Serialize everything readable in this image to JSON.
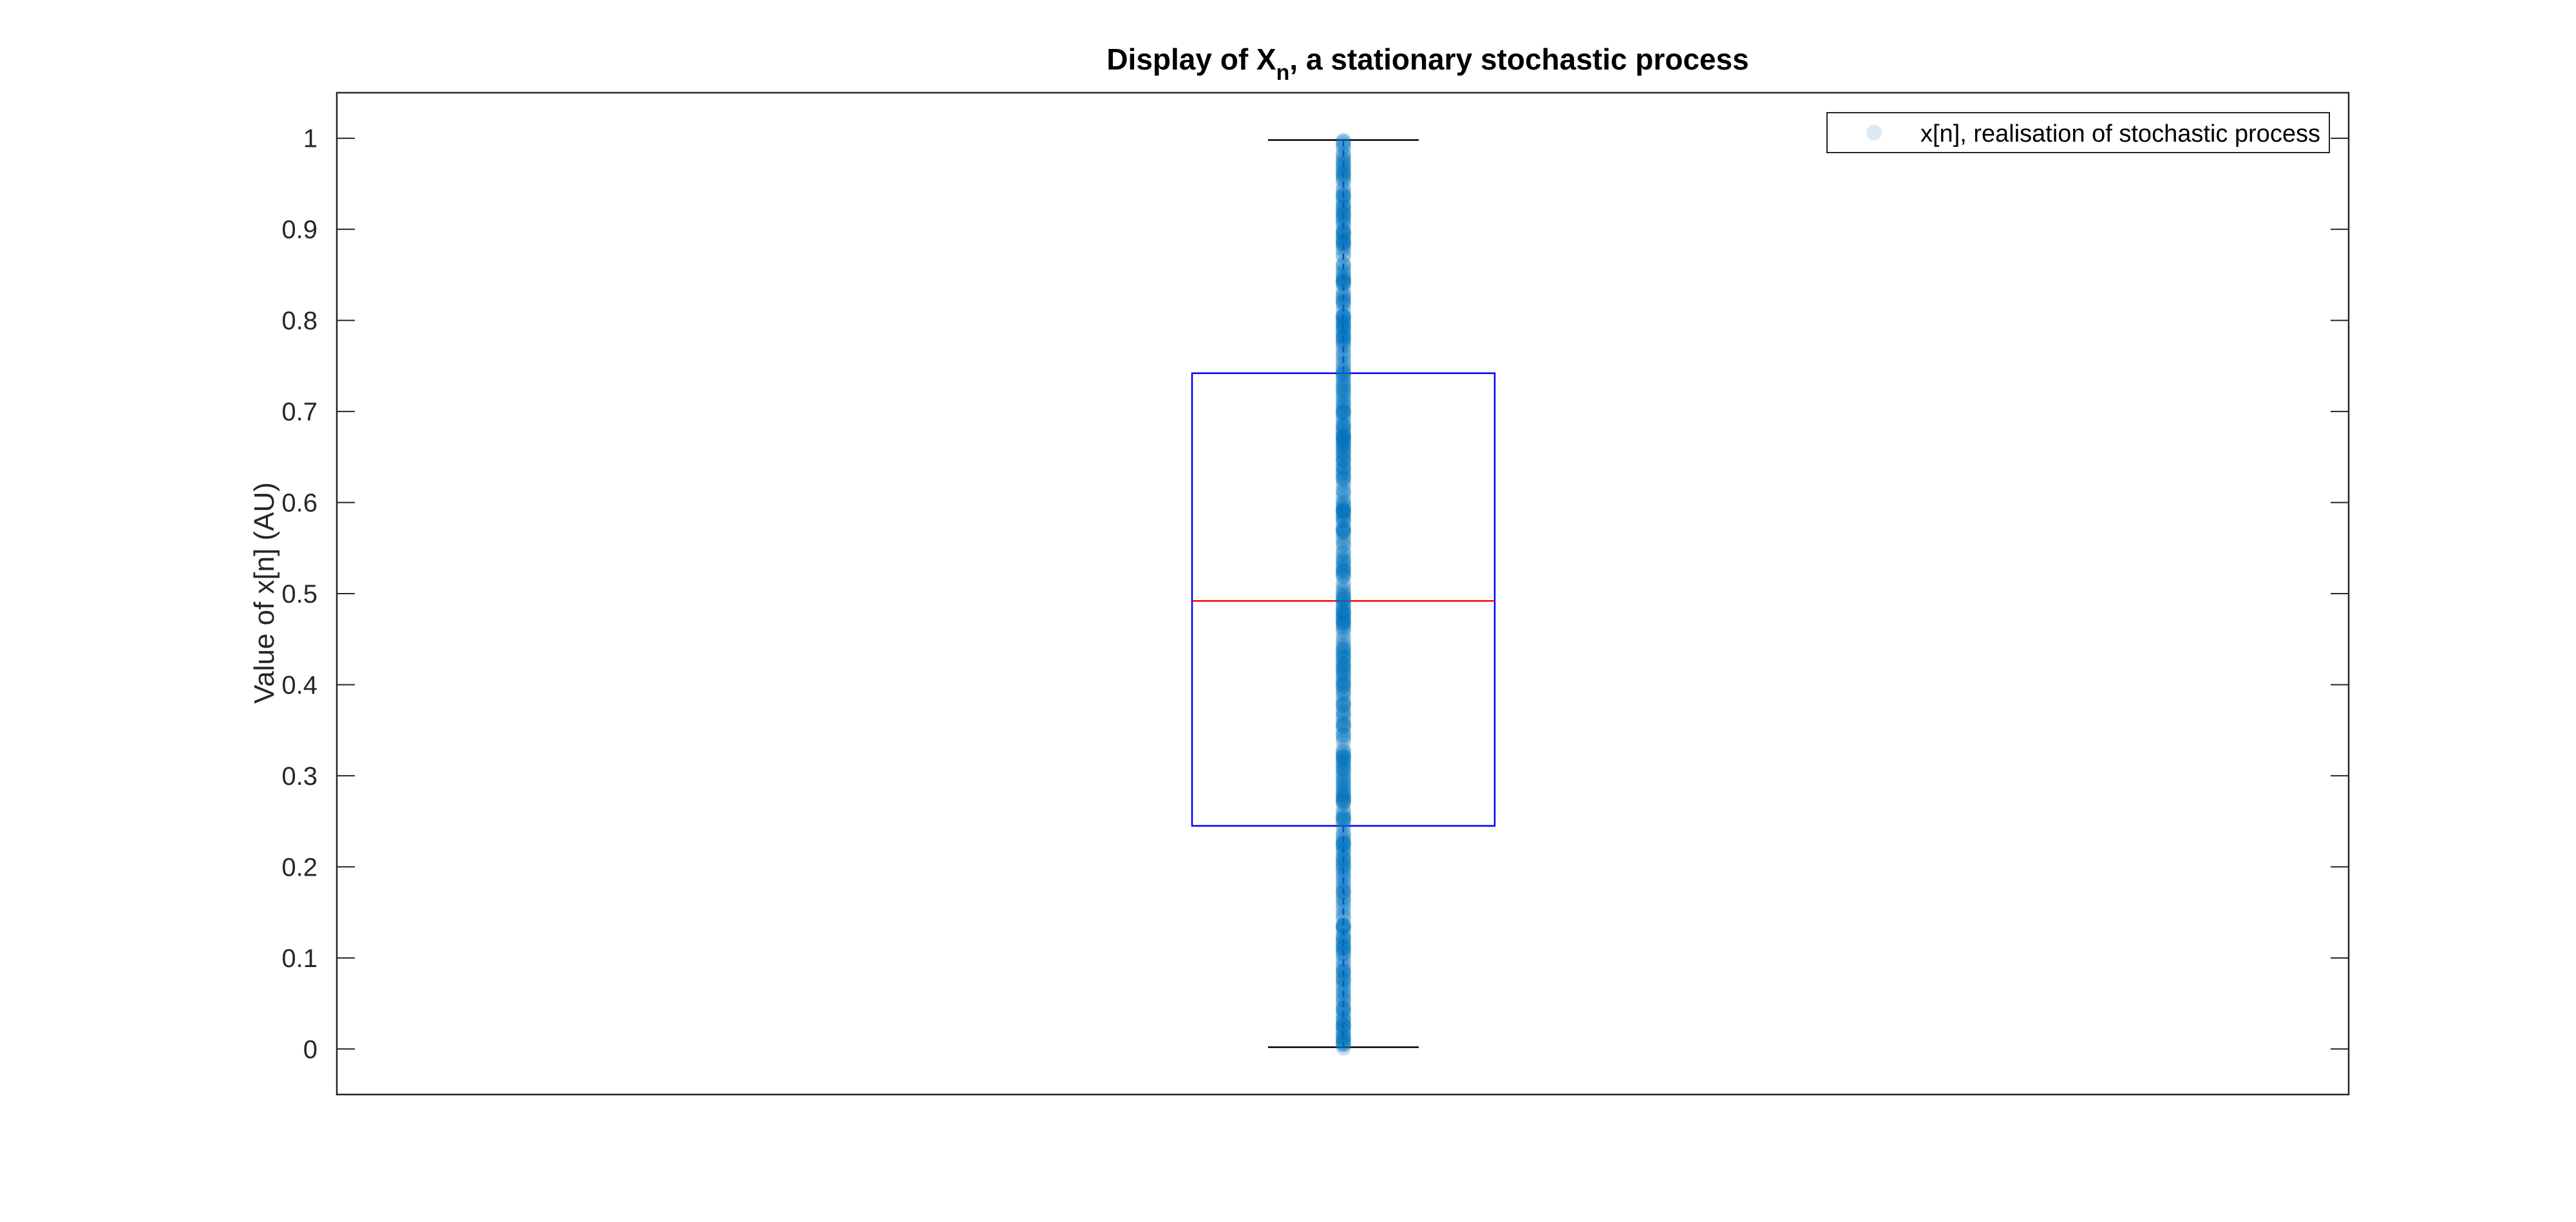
{
  "chart_data": {
    "type": "scatter",
    "title_prefix": "Display of X",
    "title_subscript": "n",
    "title_suffix": ", a stationary stochastic process",
    "xlabel": "",
    "ylabel": "Value of x[n] (AU)",
    "ylim": [
      -0.05,
      1.05
    ],
    "yticks": [
      "0",
      "0.1",
      "0.2",
      "0.3",
      "0.4",
      "0.5",
      "0.6",
      "0.7",
      "0.8",
      "0.9",
      "1"
    ],
    "ytick_values": [
      0,
      0.1,
      0.2,
      0.3,
      0.4,
      0.5,
      0.6,
      0.7,
      0.8,
      0.9,
      1
    ],
    "grid": false,
    "legend_position": "top-right",
    "series": [
      {
        "name": "x[n], realisation of stochastic process",
        "color": "#0072BD",
        "x": 1,
        "values_range": [
          0,
          1
        ],
        "sample_count": 1000
      }
    ],
    "boxplot": {
      "min": 0.002,
      "q1": 0.245,
      "median": 0.492,
      "q3": 0.742,
      "max": 0.998,
      "box_color": "#0000FF",
      "median_color": "#FF0000",
      "whisker_color": "#000000"
    }
  }
}
